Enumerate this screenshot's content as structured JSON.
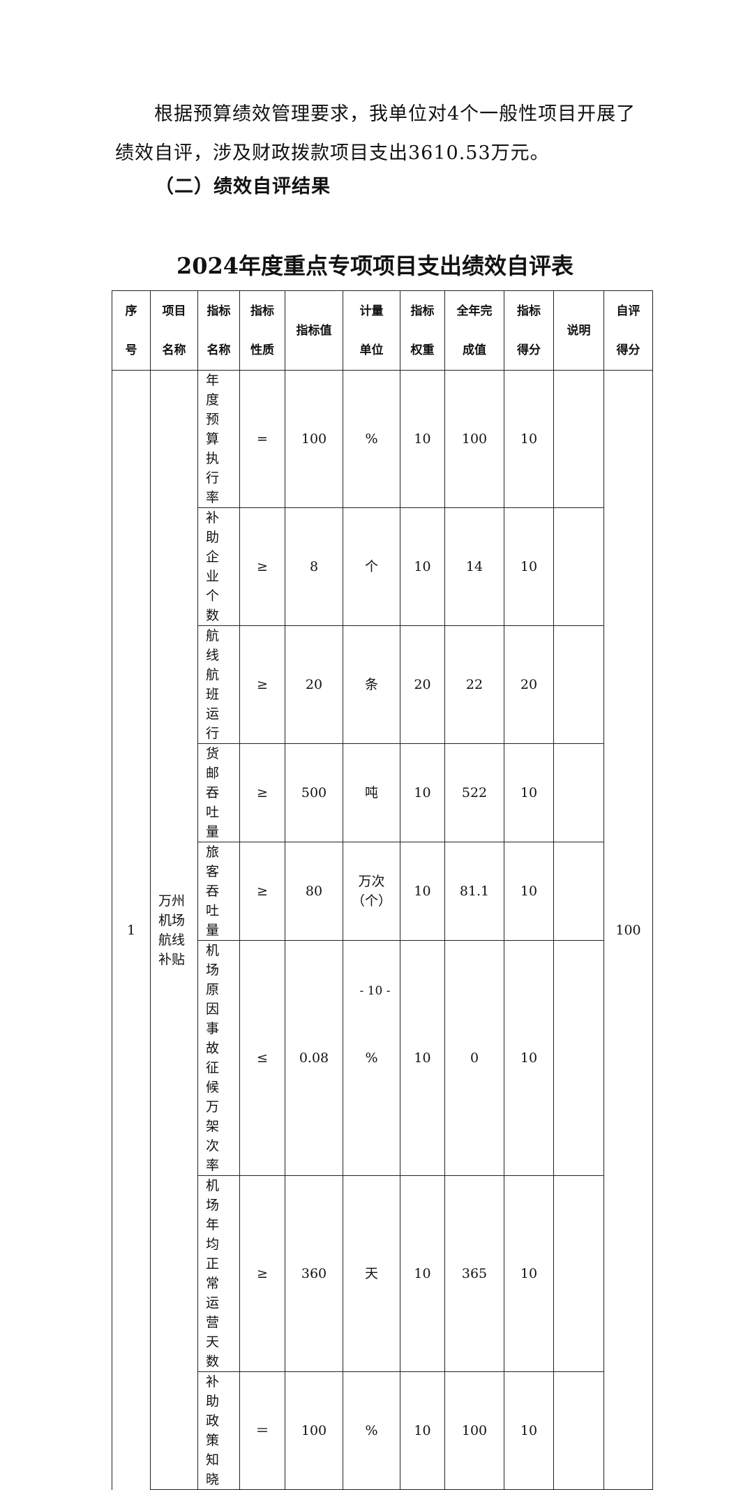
{
  "intro": "根据预算绩效管理要求，我单位对4个一般性项目开展了绩效自评，涉及财政拨款项目支出3610.53万元。",
  "section_heading": "（二）绩效自评结果",
  "table_title": "2024年度重点专项项目支出绩效自评表",
  "headers": [
    [
      "序",
      "号"
    ],
    [
      "项目",
      "名称"
    ],
    [
      "指标",
      "名称"
    ],
    [
      "指标",
      "性质"
    ],
    [
      "指标值"
    ],
    [
      "计量",
      "单位"
    ],
    [
      "指标",
      "权重"
    ],
    [
      "全年完",
      "成值"
    ],
    [
      "指标",
      "得分"
    ],
    [
      "说明"
    ],
    [
      "自评",
      "得分"
    ]
  ],
  "project": {
    "seq": "1",
    "name": "万州机场航线补贴",
    "self_score": "100"
  },
  "rows": [
    {
      "indicator": "年度预算执行率",
      "nature": "=",
      "target": "100",
      "unit": "%",
      "weight": "10",
      "actual": "100",
      "score": "10",
      "note": ""
    },
    {
      "indicator": "补助企业个数",
      "nature": "≥",
      "target": "8",
      "unit": "个",
      "weight": "10",
      "actual": "14",
      "score": "10",
      "note": ""
    },
    {
      "indicator": "航线航班运行",
      "nature": "≥",
      "target": "20",
      "unit": "条",
      "weight": "20",
      "actual": "22",
      "score": "20",
      "note": ""
    },
    {
      "indicator": "货邮吞吐量",
      "nature": "≥",
      "target": "500",
      "unit": "吨",
      "weight": "10",
      "actual": "522",
      "score": "10",
      "note": ""
    },
    {
      "indicator": "旅客吞吐量",
      "nature": "≥",
      "target": "80",
      "unit": "万次（个）",
      "weight": "10",
      "actual": "81.1",
      "score": "10",
      "note": ""
    },
    {
      "indicator": "机场原因事故征候万架次率",
      "nature": "≤",
      "target": "0.08",
      "unit": "%",
      "weight": "10",
      "actual": "0",
      "score": "10",
      "note": ""
    },
    {
      "indicator": "机场年均正常运营天数",
      "nature": "≥",
      "target": "360",
      "unit": "天",
      "weight": "10",
      "actual": "365",
      "score": "10",
      "note": ""
    },
    {
      "indicator": "补助政策知晓",
      "nature": "＝",
      "target": "100",
      "unit": "%",
      "weight": "10",
      "actual": "100",
      "score": "10",
      "note": ""
    }
  ],
  "page_number": "- 10 -"
}
